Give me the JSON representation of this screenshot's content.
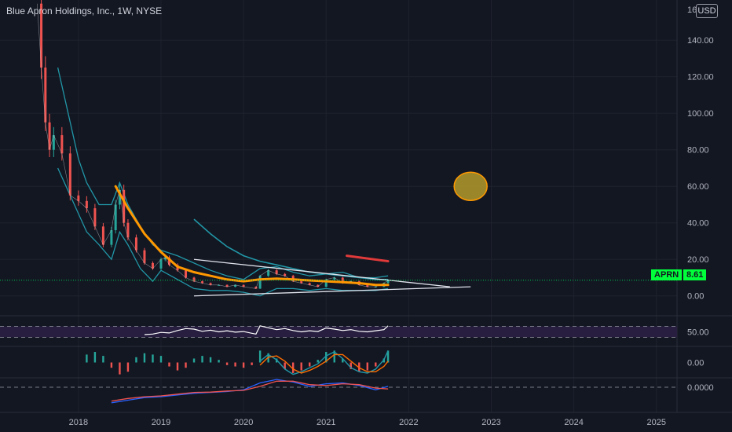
{
  "header": {
    "title": "Blue Apron Holdings, Inc., 1W, NYSE",
    "currency": "USD",
    "top_tick_partial": "16"
  },
  "colors": {
    "background": "#131722",
    "grid": "#1e222d",
    "text": "#b2b5be",
    "candle_up": "#26a69a",
    "candle_down": "#ef5350",
    "ma_orange": "#ff9800",
    "bb_teal": "#2196a6",
    "trendline": "#e0e3eb",
    "red_marker": "#e03a3a",
    "circle_fill": "#b49b2a",
    "circle_stroke": "#ff9800",
    "price_line": "#00c853",
    "price_label_bg": "#00ff3a",
    "rsi_band": "#2a1f44",
    "macd_line": "#2962ff",
    "signal_line": "#ff6d00"
  },
  "price_label": {
    "symbol": "APRN",
    "value": "8.61"
  },
  "chart_data": [
    {
      "type": "line",
      "title": "Blue Apron Holdings, Inc., 1W, NYSE",
      "x_ticks": [
        "2018",
        "2019",
        "2020",
        "2021",
        "2022",
        "2023",
        "2024",
        "2025"
      ],
      "y_ticks": [
        "0.00",
        "20.00",
        "40.00",
        "60.00",
        "80.00",
        "100.00",
        "120.00",
        "140.00"
      ],
      "ylim": [
        -10,
        162
      ],
      "xlim": [
        2017.05,
        2025.25
      ],
      "last_price": 8.61,
      "series": [
        {
          "key": "price",
          "values": [
            [
              2017.5,
              160
            ],
            [
              2017.55,
              125
            ],
            [
              2017.6,
              95
            ],
            [
              2017.65,
              80
            ],
            [
              2017.7,
              88
            ],
            [
              2017.8,
              78
            ],
            [
              2017.9,
              55
            ],
            [
              2018.0,
              52
            ],
            [
              2018.1,
              48
            ],
            [
              2018.2,
              38
            ],
            [
              2018.3,
              28
            ],
            [
              2018.4,
              36
            ],
            [
              2018.45,
              50
            ],
            [
              2018.5,
              58
            ],
            [
              2018.55,
              40
            ],
            [
              2018.6,
              32
            ],
            [
              2018.7,
              25
            ],
            [
              2018.8,
              18
            ],
            [
              2018.9,
              15
            ],
            [
              2019.0,
              20
            ],
            [
              2019.05,
              21
            ],
            [
              2019.1,
              17
            ],
            [
              2019.2,
              14
            ],
            [
              2019.3,
              10
            ],
            [
              2019.4,
              8
            ],
            [
              2019.5,
              7
            ],
            [
              2019.6,
              6
            ],
            [
              2019.7,
              6
            ],
            [
              2019.8,
              5
            ],
            [
              2019.9,
              6
            ],
            [
              2020.0,
              5
            ],
            [
              2020.15,
              4
            ],
            [
              2020.2,
              11
            ],
            [
              2020.3,
              14
            ],
            [
              2020.4,
              12
            ],
            [
              2020.5,
              11
            ],
            [
              2020.6,
              8
            ],
            [
              2020.7,
              7
            ],
            [
              2020.8,
              6
            ],
            [
              2020.9,
              5
            ],
            [
              2021.0,
              9
            ],
            [
              2021.1,
              10
            ],
            [
              2021.2,
              7
            ],
            [
              2021.3,
              8
            ],
            [
              2021.4,
              6
            ],
            [
              2021.5,
              5
            ],
            [
              2021.6,
              5
            ],
            [
              2021.7,
              7
            ],
            [
              2021.75,
              8.61
            ]
          ]
        },
        {
          "key": "ma_orange",
          "values": [
            [
              2018.45,
              60
            ],
            [
              2018.6,
              48
            ],
            [
              2018.8,
              34
            ],
            [
              2019.0,
              24
            ],
            [
              2019.2,
              16
            ],
            [
              2019.4,
              13
            ],
            [
              2019.6,
              11
            ],
            [
              2019.8,
              9
            ],
            [
              2020.0,
              8
            ],
            [
              2020.2,
              9
            ],
            [
              2020.4,
              9.5
            ],
            [
              2020.6,
              9
            ],
            [
              2020.8,
              8.5
            ],
            [
              2021.0,
              8
            ],
            [
              2021.2,
              7.5
            ],
            [
              2021.4,
              7
            ],
            [
              2021.6,
              6
            ],
            [
              2021.75,
              6
            ]
          ]
        },
        {
          "key": "bb_upper",
          "values": [
            [
              2017.75,
              125
            ],
            [
              2017.9,
              95
            ],
            [
              2018.0,
              75
            ],
            [
              2018.1,
              62
            ],
            [
              2018.25,
              50
            ],
            [
              2018.4,
              50
            ],
            [
              2018.5,
              62
            ],
            [
              2018.6,
              50
            ],
            [
              2018.75,
              38
            ],
            [
              2018.9,
              28
            ],
            [
              2019.0,
              25
            ],
            [
              2019.2,
              22
            ],
            [
              2019.4,
              18
            ],
            [
              2019.6,
              14
            ],
            [
              2019.8,
              11
            ],
            [
              2020.0,
              9
            ],
            [
              2020.2,
              15
            ],
            [
              2020.4,
              16
            ],
            [
              2020.6,
              13
            ],
            [
              2020.8,
              11
            ],
            [
              2021.0,
              12
            ],
            [
              2021.2,
              13
            ],
            [
              2021.4,
              10
            ],
            [
              2021.6,
              10
            ],
            [
              2021.75,
              11
            ]
          ]
        },
        {
          "key": "bb_lower",
          "values": [
            [
              2017.75,
              70
            ],
            [
              2017.9,
              55
            ],
            [
              2018.0,
              45
            ],
            [
              2018.1,
              35
            ],
            [
              2018.25,
              28
            ],
            [
              2018.4,
              20
            ],
            [
              2018.5,
              35
            ],
            [
              2018.6,
              28
            ],
            [
              2018.75,
              15
            ],
            [
              2018.9,
              8
            ],
            [
              2019.0,
              14
            ],
            [
              2019.2,
              9
            ],
            [
              2019.4,
              4
            ],
            [
              2019.6,
              3
            ],
            [
              2019.8,
              3
            ],
            [
              2020.0,
              2
            ],
            [
              2020.2,
              0
            ],
            [
              2020.4,
              4
            ],
            [
              2020.6,
              4
            ],
            [
              2020.8,
              3
            ],
            [
              2021.0,
              4
            ],
            [
              2021.2,
              3
            ],
            [
              2021.4,
              3
            ],
            [
              2021.6,
              3
            ],
            [
              2021.75,
              4
            ]
          ]
        },
        {
          "key": "ma_long",
          "values": [
            [
              2019.4,
              42
            ],
            [
              2019.6,
              34
            ],
            [
              2019.8,
              27
            ],
            [
              2020.0,
              22
            ],
            [
              2020.2,
              19
            ],
            [
              2020.4,
              17
            ],
            [
              2020.6,
              15
            ],
            [
              2020.8,
              13
            ],
            [
              2021.0,
              12
            ],
            [
              2021.2,
              11
            ],
            [
              2021.4,
              10
            ],
            [
              2021.6,
              9
            ],
            [
              2021.75,
              9
            ]
          ]
        }
      ],
      "trendlines": [
        {
          "from": [
            2019.4,
            20
          ],
          "to": [
            2022.5,
            5
          ]
        },
        {
          "from": [
            2019.4,
            0
          ],
          "to": [
            2022.75,
            5
          ]
        }
      ],
      "drawn_marker": {
        "from": [
          2021.25,
          22
        ],
        "to": [
          2021.75,
          19
        ]
      },
      "circle_marker": {
        "x": 2022.75,
        "y": 60
      }
    },
    {
      "type": "line",
      "panel": "rsi",
      "y_ticks": [
        "50.00"
      ],
      "band": [
        30,
        70
      ],
      "values": [
        [
          2018.8,
          40
        ],
        [
          2018.9,
          42
        ],
        [
          2019.0,
          48
        ],
        [
          2019.1,
          46
        ],
        [
          2019.2,
          55
        ],
        [
          2019.3,
          62
        ],
        [
          2019.4,
          60
        ],
        [
          2019.5,
          52
        ],
        [
          2019.6,
          56
        ],
        [
          2019.7,
          50
        ],
        [
          2019.8,
          54
        ],
        [
          2019.9,
          49
        ],
        [
          2020.0,
          51
        ],
        [
          2020.1,
          45
        ],
        [
          2020.15,
          42
        ],
        [
          2020.2,
          72
        ],
        [
          2020.3,
          65
        ],
        [
          2020.4,
          58
        ],
        [
          2020.5,
          62
        ],
        [
          2020.6,
          55
        ],
        [
          2020.7,
          50
        ],
        [
          2020.8,
          54
        ],
        [
          2020.9,
          51
        ],
        [
          2021.0,
          64
        ],
        [
          2021.1,
          60
        ],
        [
          2021.2,
          55
        ],
        [
          2021.3,
          58
        ],
        [
          2021.4,
          52
        ],
        [
          2021.5,
          50
        ],
        [
          2021.6,
          54
        ],
        [
          2021.7,
          58
        ],
        [
          2021.75,
          72
        ]
      ]
    },
    {
      "type": "bar",
      "panel": "macd_histogram",
      "y_ticks": [
        "0.00"
      ],
      "x": [
        2018.1,
        2018.2,
        2018.3,
        2018.4,
        2018.5,
        2018.6,
        2018.7,
        2018.8,
        2018.9,
        2019.0,
        2019.1,
        2019.2,
        2019.3,
        2019.4,
        2019.5,
        2019.6,
        2019.7,
        2019.8,
        2019.9,
        2020.0,
        2020.1,
        2020.2,
        2020.3,
        2020.4,
        2020.5,
        2020.6,
        2020.7,
        2020.8,
        2020.9,
        2021.0,
        2021.1,
        2021.2,
        2021.3,
        2021.4,
        2021.5,
        2021.6,
        2021.7,
        2021.75
      ],
      "values": [
        0.6,
        0.8,
        0.5,
        -0.4,
        -0.9,
        -0.7,
        0.4,
        0.7,
        0.6,
        0.5,
        -0.3,
        -0.6,
        -0.4,
        0.3,
        0.5,
        0.4,
        0.2,
        -0.2,
        -0.3,
        -0.4,
        -0.2,
        0.9,
        0.7,
        0.3,
        -0.5,
        -0.8,
        -0.6,
        -0.3,
        0.2,
        0.8,
        0.9,
        0.3,
        -0.5,
        -0.7,
        -0.6,
        -0.3,
        0.3,
        0.9
      ],
      "lines": {
        "macd": [
          [
            2020.2,
            0.1
          ],
          [
            2020.3,
            0.6
          ],
          [
            2020.4,
            0.2
          ],
          [
            2020.5,
            -0.5
          ],
          [
            2020.6,
            -0.9
          ],
          [
            2020.7,
            -0.7
          ],
          [
            2020.8,
            -0.4
          ],
          [
            2020.9,
            -0.1
          ],
          [
            2021.0,
            0.5
          ],
          [
            2021.1,
            0.8
          ],
          [
            2021.2,
            0.3
          ],
          [
            2021.3,
            -0.4
          ],
          [
            2021.4,
            -0.7
          ],
          [
            2021.5,
            -0.8
          ],
          [
            2021.6,
            -0.5
          ],
          [
            2021.7,
            0.2
          ],
          [
            2021.75,
            0.9
          ]
        ],
        "signal": [
          [
            2020.2,
            -0.2
          ],
          [
            2020.3,
            0.4
          ],
          [
            2020.4,
            0.5
          ],
          [
            2020.5,
            0.1
          ],
          [
            2020.6,
            -0.5
          ],
          [
            2020.7,
            -0.8
          ],
          [
            2020.8,
            -0.6
          ],
          [
            2020.9,
            -0.3
          ],
          [
            2021.0,
            0.1
          ],
          [
            2021.1,
            0.6
          ],
          [
            2021.2,
            0.6
          ],
          [
            2021.3,
            0.1
          ],
          [
            2021.4,
            -0.4
          ],
          [
            2021.5,
            -0.7
          ],
          [
            2021.6,
            -0.7
          ],
          [
            2021.7,
            -0.3
          ],
          [
            2021.75,
            0.1
          ]
        ]
      }
    },
    {
      "type": "line",
      "panel": "oscillator",
      "y_ticks": [
        "0.0000"
      ],
      "series": [
        {
          "key": "blue",
          "values": [
            [
              2018.4,
              -0.9
            ],
            [
              2018.6,
              -0.75
            ],
            [
              2018.8,
              -0.6
            ],
            [
              2019.0,
              -0.55
            ],
            [
              2019.2,
              -0.45
            ],
            [
              2019.4,
              -0.35
            ],
            [
              2019.6,
              -0.3
            ],
            [
              2019.8,
              -0.25
            ],
            [
              2020.0,
              -0.15
            ],
            [
              2020.2,
              0.25
            ],
            [
              2020.4,
              0.45
            ],
            [
              2020.6,
              0.3
            ],
            [
              2020.8,
              0.05
            ],
            [
              2021.0,
              0.2
            ],
            [
              2021.2,
              0.25
            ],
            [
              2021.4,
              0.1
            ],
            [
              2021.6,
              -0.15
            ],
            [
              2021.75,
              0.05
            ]
          ]
        },
        {
          "key": "red",
          "values": [
            [
              2018.4,
              -0.8
            ],
            [
              2018.6,
              -0.65
            ],
            [
              2018.8,
              -0.55
            ],
            [
              2019.0,
              -0.5
            ],
            [
              2019.2,
              -0.4
            ],
            [
              2019.4,
              -0.3
            ],
            [
              2019.6,
              -0.28
            ],
            [
              2019.8,
              -0.22
            ],
            [
              2020.0,
              -0.18
            ],
            [
              2020.2,
              0.05
            ],
            [
              2020.4,
              0.35
            ],
            [
              2020.6,
              0.35
            ],
            [
              2020.8,
              0.15
            ],
            [
              2021.0,
              0.1
            ],
            [
              2021.2,
              0.2
            ],
            [
              2021.4,
              0.15
            ],
            [
              2021.6,
              -0.05
            ],
            [
              2021.75,
              -0.1
            ]
          ]
        }
      ]
    }
  ]
}
